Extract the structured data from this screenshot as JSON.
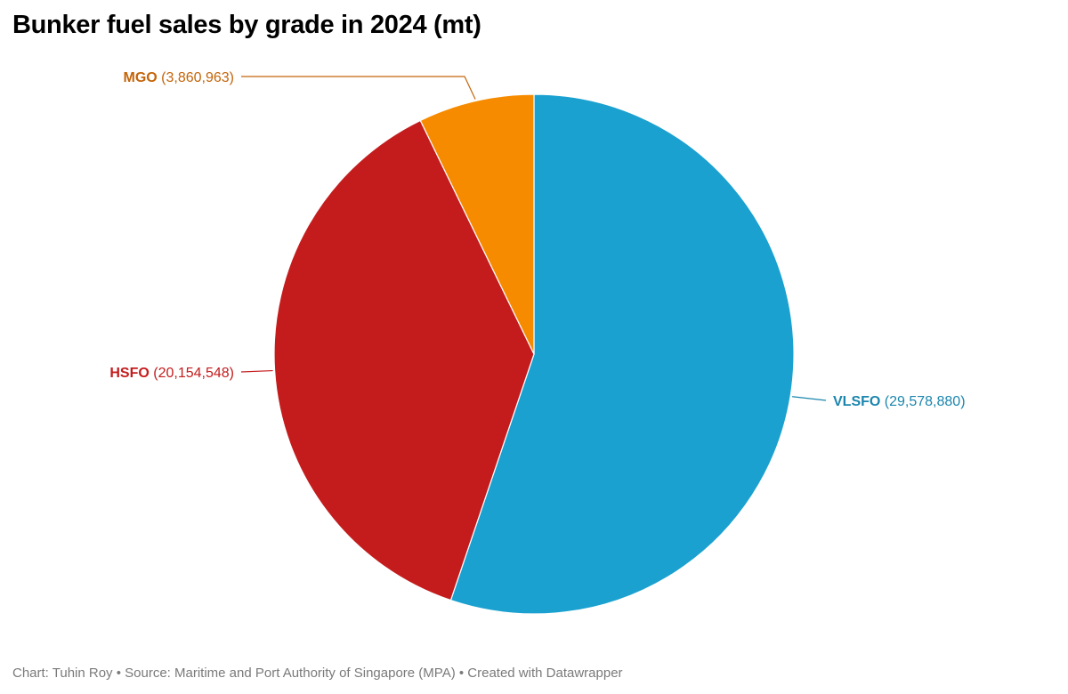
{
  "header": {
    "title": "Bunker fuel sales by grade in 2024 (mt)"
  },
  "footer": {
    "credit": "Chart: Tuhin Roy • Source: Maritime and Port Authority of Singapore (MPA) • Created with Datawrapper"
  },
  "chart_data": {
    "type": "pie",
    "title": "Bunker fuel sales by grade in 2024 (mt)",
    "categories": [
      "VLSFO",
      "HSFO",
      "MGO"
    ],
    "values": [
      29578880,
      20154548,
      3860963
    ],
    "value_labels": [
      "(29,578,880)",
      "(20,154,548)",
      "(3,860,963)"
    ],
    "colors": [
      "#1aa1cf",
      "#c41c1d",
      "#f68b00"
    ],
    "label_colors": [
      "#1b86ad",
      "#c41c1d",
      "#c4650a"
    ],
    "start_angle": "12 o'clock",
    "direction": "clockwise",
    "legend": "none (direct labels)"
  }
}
